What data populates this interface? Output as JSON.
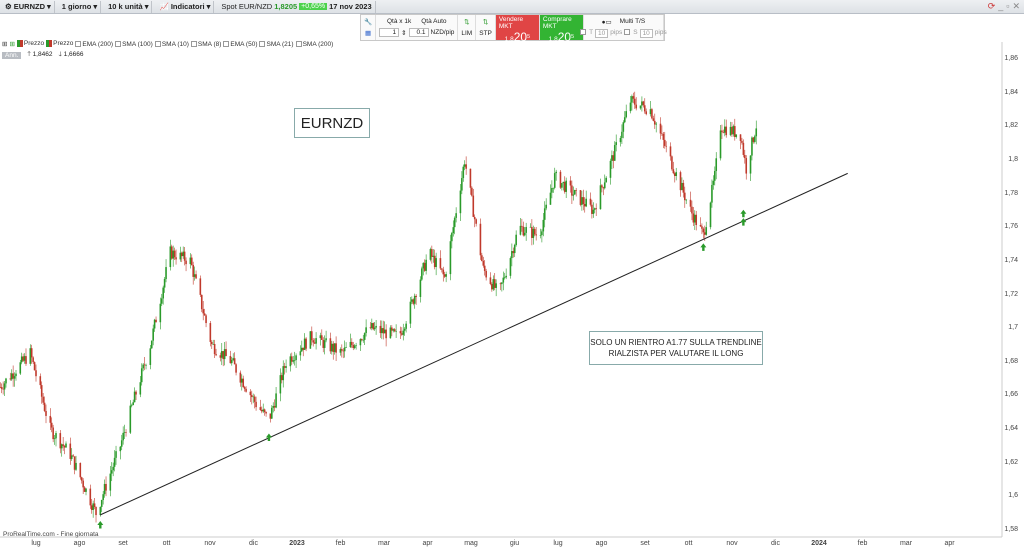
{
  "toolbar": {
    "symbol": "EURNZD",
    "timeframe": "1 giorno",
    "units": "10 k unità",
    "indicators": "Indicatori",
    "spot_label": "Spot EUR/NZD",
    "spot_price": "1,8205",
    "change": "+0,65%",
    "date": "17 nov 2023"
  },
  "trade": {
    "qty_label": "Qtà x 1k",
    "qty_auto": "Qtà Auto",
    "qty_value": "1",
    "pip_value": "0.1",
    "pip_unit": "NZD/pip",
    "lim": "LIM",
    "stp": "STP",
    "sell_label": "Vendere MKT",
    "sell_small": "1,8",
    "sell_big": "20",
    "sell_sup": "5",
    "buy_label": "Comprare MKT",
    "buy_small": "1,8",
    "buy_big": "20",
    "buy_sup": "5",
    "multi": "Multi T/S",
    "t_label": "T",
    "t_val": "10",
    "s_label": "S",
    "s_val": "10",
    "pips": "pips"
  },
  "indicators": {
    "items": [
      "Prezzo",
      "Prezzo",
      "EMA (200)",
      "SMA (100)",
      "SMA (10)",
      "SMA (8)",
      "EMA (50)",
      "SMA (21)",
      "SMA (200)"
    ],
    "tag": "Ann.",
    "high": "1,8462",
    "low": "1,6666"
  },
  "chart": {
    "title": "EURNZD",
    "note_line1": "SOLO UN RIENTRO A1.77 SULLA TRENDLINE",
    "note_line2": "RIALZISTA PER VALUTARE IL LONG",
    "footer": "ProRealTime.com - Fine giornata"
  },
  "chart_data": {
    "type": "candlestick",
    "up_color": "#2a9a2a",
    "down_color": "#c0392b",
    "y_ticks": [
      "1,86",
      "1,84",
      "1,82",
      "1,8",
      "1,78",
      "1,76",
      "1,74",
      "1,72",
      "1,7",
      "1,68",
      "1,66",
      "1,64",
      "1,62",
      "1,6",
      "1,58"
    ],
    "x_ticks": [
      "lug",
      "ago",
      "set",
      "ott",
      "nov",
      "dic",
      "2023",
      "feb",
      "mar",
      "apr",
      "mag",
      "giu",
      "lug",
      "ago",
      "set",
      "ott",
      "nov",
      "dic",
      "2024",
      "feb",
      "mar",
      "apr"
    ],
    "ylim": [
      1.58,
      1.86
    ],
    "price_path": [
      [
        "2022-06-06",
        1.665
      ],
      [
        "2022-06-27",
        1.685
      ],
      [
        "2022-07-11",
        1.64
      ],
      [
        "2022-07-25",
        1.625
      ],
      [
        "2022-08-12",
        1.59
      ],
      [
        "2022-08-29",
        1.63
      ],
      [
        "2022-09-19",
        1.69
      ],
      [
        "2022-10-03",
        1.745
      ],
      [
        "2022-10-17",
        1.74
      ],
      [
        "2022-11-01",
        1.69
      ],
      [
        "2022-11-15",
        1.68
      ],
      [
        "2022-12-02",
        1.655
      ],
      [
        "2022-12-11",
        1.645
      ],
      [
        "2022-12-23",
        1.68
      ],
      [
        "2023-01-10",
        1.695
      ],
      [
        "2023-01-31",
        1.685
      ],
      [
        "2023-02-20",
        1.7
      ],
      [
        "2023-03-12",
        1.695
      ],
      [
        "2023-03-19",
        1.71
      ],
      [
        "2023-04-02",
        1.745
      ],
      [
        "2023-04-13",
        1.73
      ],
      [
        "2023-04-27",
        1.8
      ],
      [
        "2023-05-10",
        1.735
      ],
      [
        "2023-05-21",
        1.72
      ],
      [
        "2023-06-04",
        1.76
      ],
      [
        "2023-06-18",
        1.755
      ],
      [
        "2023-06-29",
        1.79
      ],
      [
        "2023-07-12",
        1.78
      ],
      [
        "2023-07-26",
        1.77
      ],
      [
        "2023-08-10",
        1.805
      ],
      [
        "2023-08-21",
        1.835
      ],
      [
        "2023-09-04",
        1.83
      ],
      [
        "2023-09-18",
        1.8
      ],
      [
        "2023-10-02",
        1.77
      ],
      [
        "2023-10-11",
        1.755
      ],
      [
        "2023-10-19",
        1.79
      ],
      [
        "2023-10-23",
        1.82
      ],
      [
        "2023-11-06",
        1.815
      ],
      [
        "2023-11-10",
        1.795
      ],
      [
        "2023-11-17",
        1.8205
      ]
    ],
    "trendline": [
      [
        "2022-08-15",
        1.589
      ],
      [
        "2024-01-20",
        1.792
      ]
    ],
    "arrows": [
      [
        "2022-08-15",
        1.583
      ],
      [
        "2022-12-11",
        1.635
      ],
      [
        "2023-10-11",
        1.748
      ],
      [
        "2023-11-08",
        1.768
      ],
      [
        "2023-11-08",
        1.763
      ]
    ]
  }
}
